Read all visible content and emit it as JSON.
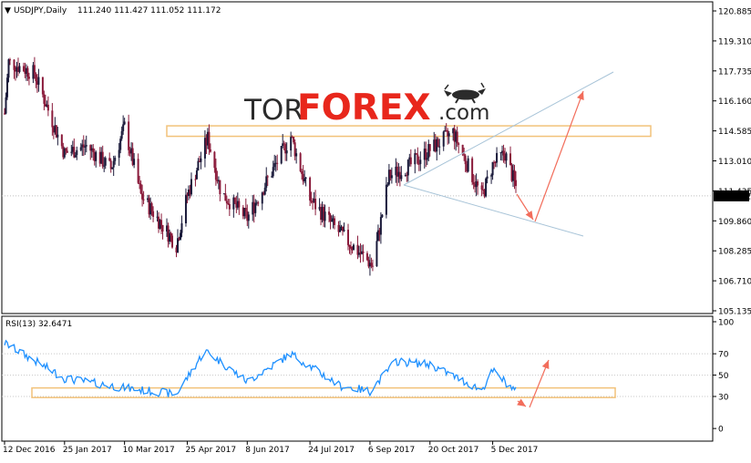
{
  "header": {
    "symbol": "USDJPY,Daily",
    "ohlc": "111.240 111.427 111.052 111.172",
    "rsi_label": "RSI(13) 32.6471"
  },
  "logo": {
    "tor": "TOR",
    "forex": "FOREX",
    "com": ".com"
  },
  "colors": {
    "bull": "#1a1a3a",
    "bear": "#8a1a3a",
    "rsi_line": "#1e90ff",
    "zone": "#f2c27a",
    "trendline": "#a8c4d8",
    "arrow": "#f26d5b",
    "logo_red": "#e8271c",
    "logo_dark": "#2b2b2b"
  },
  "chart_data": [
    {
      "type": "candlestick",
      "title": "USDJPY,Daily",
      "y_ticks": [
        "120.885",
        "119.310",
        "117.735",
        "116.160",
        "114.585",
        "113.010",
        "111.435",
        "109.860",
        "108.285",
        "106.710",
        "105.135"
      ],
      "ylim": [
        105.135,
        120.885
      ],
      "x_ticks": [
        "12 Dec 2016",
        "25 Jan 2017",
        "10 Mar 2017",
        "25 Apr 2017",
        "8 Jun 2017",
        "24 Jul 2017",
        "6 Sep 2017",
        "20 Oct 2017",
        "5 Dec 2017"
      ],
      "current_price": "111.172",
      "anchor_closes": [
        {
          "date": "12 Dec 2016",
          "close": 115.5
        },
        {
          "date": "15 Dec 2016",
          "close": 118.2
        },
        {
          "date": "3 Jan 2017",
          "close": 117.6
        },
        {
          "date": "25 Jan 2017",
          "close": 113.4
        },
        {
          "date": "10 Feb 2017",
          "close": 113.8
        },
        {
          "date": "28 Feb 2017",
          "close": 112.6
        },
        {
          "date": "10 Mar 2017",
          "close": 114.8
        },
        {
          "date": "22 Mar 2017",
          "close": 111.2
        },
        {
          "date": "17 Apr 2017",
          "close": 108.6
        },
        {
          "date": "25 Apr 2017",
          "close": 111.2
        },
        {
          "date": "10 May 2017",
          "close": 114.2
        },
        {
          "date": "20 May 2017",
          "close": 111.3
        },
        {
          "date": "8 Jun 2017",
          "close": 110.0
        },
        {
          "date": "25 Jun 2017",
          "close": 112.3
        },
        {
          "date": "10 Jul 2017",
          "close": 114.3
        },
        {
          "date": "24 Jul 2017",
          "close": 111.0
        },
        {
          "date": "15 Aug 2017",
          "close": 109.2
        },
        {
          "date": "8 Sep 2017",
          "close": 107.5
        },
        {
          "date": "20 Sep 2017",
          "close": 112.2
        },
        {
          "date": "6 Oct 2017",
          "close": 112.8
        },
        {
          "date": "20 Oct 2017",
          "close": 113.6
        },
        {
          "date": "6 Nov 2017",
          "close": 114.5
        },
        {
          "date": "27 Nov 2017",
          "close": 111.1
        },
        {
          "date": "5 Dec 2017",
          "close": 112.8
        },
        {
          "date": "14 Dec 2017",
          "close": 113.4
        },
        {
          "date": "24 Dec 2017",
          "close": 111.2
        }
      ],
      "resistance_zone": [
        114.3,
        114.85
      ],
      "annotations": [
        "support trendline",
        "rising trendline",
        "arrow down to support",
        "arrow up to rising trendline"
      ]
    },
    {
      "type": "line",
      "title": "RSI(13) 32.6471",
      "y_ticks": [
        "100",
        "70",
        "50",
        "30",
        "0"
      ],
      "ylim": [
        -5,
        100
      ],
      "last_value": 32.6471,
      "anchor_values": [
        {
          "date": "12 Dec 2016",
          "value": 80
        },
        {
          "date": "25 Jan 2017",
          "value": 47
        },
        {
          "date": "10 Mar 2017",
          "value": 38
        },
        {
          "date": "17 Apr 2017",
          "value": 32
        },
        {
          "date": "8 May 2017",
          "value": 73
        },
        {
          "date": "8 Jun 2017",
          "value": 44
        },
        {
          "date": "10 Jul 2017",
          "value": 70
        },
        {
          "date": "15 Aug 2017",
          "value": 40
        },
        {
          "date": "6 Sep 2017",
          "value": 35
        },
        {
          "date": "25 Sep 2017",
          "value": 63
        },
        {
          "date": "20 Oct 2017",
          "value": 60
        },
        {
          "date": "27 Nov 2017",
          "value": 36
        },
        {
          "date": "5 Dec 2017",
          "value": 54
        },
        {
          "date": "24 Dec 2017",
          "value": 32.6
        }
      ],
      "support_zone": [
        29,
        38
      ]
    }
  ]
}
